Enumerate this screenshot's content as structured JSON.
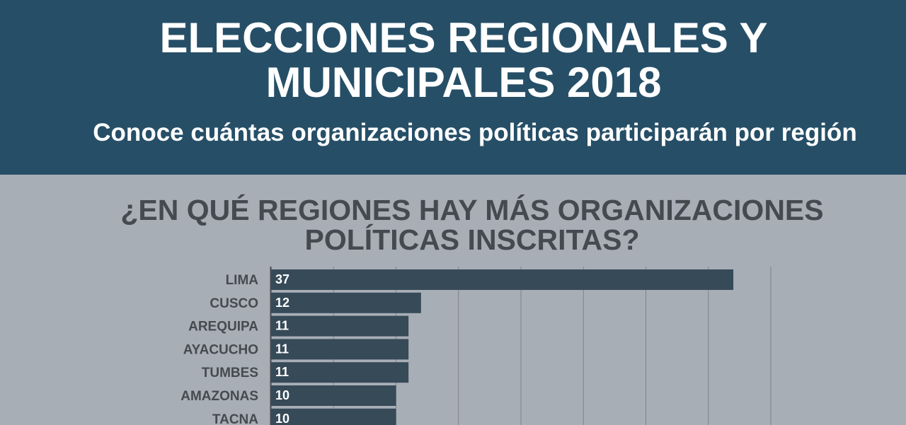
{
  "header": {
    "title_line1": "ELECCIONES REGIONALES Y",
    "title_line2": "MUNICIPALES 2018",
    "subtitle": "Conoce cuántas organizaciones políticas participarán por región"
  },
  "colors": {
    "header_bg": "#264f67",
    "page_bg": "#a8aeb6",
    "bar": "#364a58",
    "text_dark": "#454a50"
  },
  "chart_data": {
    "type": "bar",
    "orientation": "horizontal",
    "title_line1": "¿EN QUÉ REGIONES HAY MÁS ORGANIZACIONES",
    "title_line2": "POLÍTICAS INSCRITAS?",
    "categories": [
      "LIMA",
      "CUSCO",
      "AREQUIPA",
      "AYACUCHO",
      "TUMBES",
      "AMAZONAS",
      "TACNA"
    ],
    "values": [
      37,
      12,
      11,
      11,
      11,
      10,
      10
    ],
    "xlim": [
      0,
      40
    ],
    "grid": true,
    "data_labels": true
  }
}
